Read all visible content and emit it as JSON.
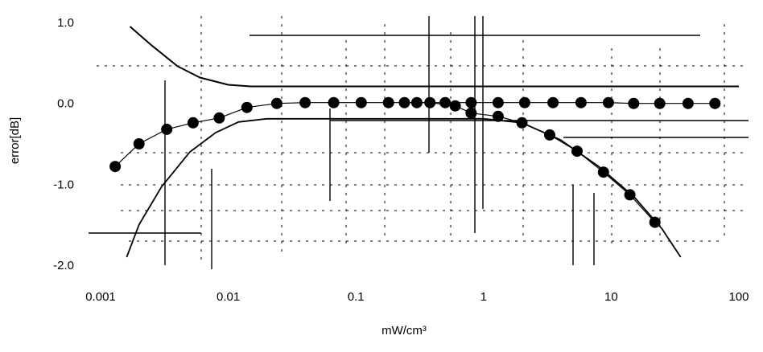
{
  "chart_data": {
    "type": "line",
    "title": "",
    "xlabel": "mW/cm³",
    "ylabel": "error[dB]",
    "xscale": "log",
    "xlim": [
      0.001,
      100
    ],
    "ylim": [
      -2.0,
      1.0
    ],
    "x_tick_labels": [
      "0.001",
      "0.01",
      "0.1",
      "1",
      "10",
      "100"
    ],
    "x_tick_values": [
      0.001,
      0.01,
      0.1,
      1,
      10,
      100
    ],
    "y_tick_labels": [
      "1.0",
      "0.0",
      "-1.0",
      "-2.0"
    ],
    "y_tick_values": [
      1.0,
      0.0,
      -1.0,
      -2.0
    ],
    "legend": "none",
    "series": [
      {
        "style": "markers",
        "points": [
          [
            0.0013,
            -0.78
          ],
          [
            0.002,
            -0.5
          ],
          [
            0.0033,
            -0.32
          ],
          [
            0.0053,
            -0.24
          ],
          [
            0.0085,
            -0.18
          ],
          [
            0.014,
            -0.05
          ],
          [
            0.024,
            0.0
          ],
          [
            0.04,
            0.01
          ],
          [
            0.067,
            0.01
          ],
          [
            0.11,
            0.01
          ],
          [
            0.18,
            0.01
          ],
          [
            0.3,
            0.01
          ],
          [
            0.5,
            0.01
          ],
          [
            0.8,
            0.01
          ],
          [
            1.3,
            0.01
          ],
          [
            2.1,
            0.01
          ],
          [
            3.5,
            0.01
          ],
          [
            5.8,
            0.01
          ],
          [
            9.5,
            0.01
          ],
          [
            15,
            0.0
          ],
          [
            24,
            0.0
          ],
          [
            40,
            0.0
          ],
          [
            65,
            0.0
          ]
        ]
      },
      {
        "style": "markers",
        "points": [
          [
            0.24,
            0.01
          ],
          [
            0.38,
            0.01
          ],
          [
            0.6,
            -0.03
          ],
          [
            0.8,
            -0.12
          ],
          [
            1.3,
            -0.16
          ],
          [
            2.0,
            -0.24
          ],
          [
            3.3,
            -0.39
          ],
          [
            5.4,
            -0.59
          ],
          [
            8.7,
            -0.85
          ],
          [
            14,
            -1.13
          ],
          [
            22,
            -1.47
          ]
        ]
      },
      {
        "style": "line",
        "points": [
          [
            0.0017,
            0.95
          ],
          [
            0.0025,
            0.72
          ],
          [
            0.004,
            0.46
          ],
          [
            0.006,
            0.32
          ],
          [
            0.01,
            0.23
          ],
          [
            0.015,
            0.21
          ],
          [
            100,
            0.21
          ]
        ]
      },
      {
        "style": "line",
        "points": [
          [
            0.0016,
            -1.9
          ],
          [
            0.002,
            -1.5
          ],
          [
            0.003,
            -1.03
          ],
          [
            0.005,
            -0.6
          ],
          [
            0.008,
            -0.36
          ],
          [
            0.012,
            -0.23
          ],
          [
            0.02,
            -0.19
          ],
          [
            1.0,
            -0.19
          ],
          [
            2.0,
            -0.24
          ],
          [
            4.0,
            -0.45
          ],
          [
            8.0,
            -0.78
          ],
          [
            15,
            -1.15
          ],
          [
            25,
            -1.55
          ],
          [
            35,
            -1.9
          ]
        ]
      }
    ]
  }
}
